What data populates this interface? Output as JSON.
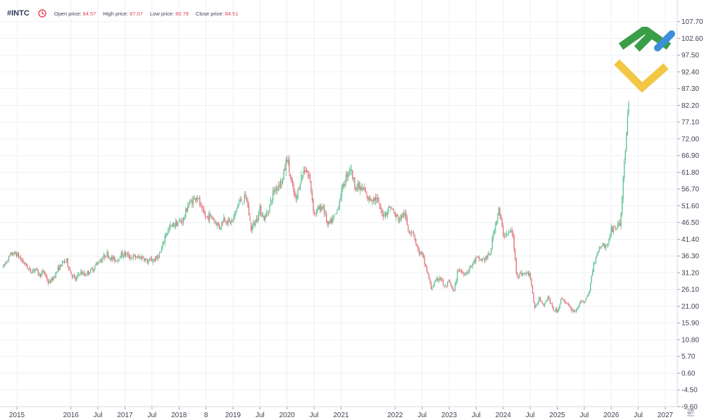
{
  "header": {
    "symbol": "#INTC",
    "open_label": "Open price:",
    "open_value": "84.57",
    "high_label": "High price:",
    "high_value": "87.07",
    "low_label": "Low price:",
    "low_value": "80.79",
    "close_label": "Close price:",
    "close_value": "84.51",
    "clock_icon_color": "#e0455a"
  },
  "colors": {
    "up": "#5cc08f",
    "down": "#e0727a",
    "grid": "#eef0f3",
    "text": "#3d4356"
  },
  "logo": {
    "icon": "company-logo",
    "green": "#3a9e48",
    "yellow": "#f2c744",
    "blue": "#3d8fd9"
  },
  "chart_data": {
    "type": "candlestick",
    "title": "",
    "xlabel": "",
    "ylabel": "",
    "ylim": [
      -9.6,
      110
    ],
    "y_ticks": [
      "107.70",
      "102.60",
      "97.50",
      "92.40",
      "87.30",
      "82.20",
      "77.10",
      "72.00",
      "66.90",
      "61.80",
      "56.70",
      "51.60",
      "46.50",
      "41.40",
      "36.30",
      "31.20",
      "26.10",
      "21.00",
      "15.90",
      "10.80",
      "5.70",
      "0.60",
      "-4.50",
      "-9.60"
    ],
    "x_ticks": [
      "2015",
      "2016",
      "Jul",
      "2017",
      "Jul",
      "2018",
      "8",
      "2019",
      "Jul",
      "2020",
      "Jul",
      "2021",
      "2022",
      "Jul",
      "2023",
      "Jul",
      "2024",
      "Jul",
      "2025",
      "Jul",
      "2026",
      "Jul",
      "2027"
    ],
    "grid": true,
    "series": [
      {
        "values": [
          [
            "2014-10",
            33.0
          ],
          [
            "2014-11",
            35.5
          ],
          [
            "2014-12",
            37.0
          ],
          [
            "2015-01",
            36.8
          ],
          [
            "2015-02",
            35.0
          ],
          [
            "2015-03",
            33.5
          ],
          [
            "2015-04",
            31.5
          ],
          [
            "2015-05",
            32.5
          ],
          [
            "2015-06",
            30.5
          ],
          [
            "2015-07",
            31.5
          ],
          [
            "2015-08",
            28.0
          ],
          [
            "2015-09",
            29.5
          ],
          [
            "2015-10",
            32.0
          ],
          [
            "2015-11",
            34.0
          ],
          [
            "2015-12",
            35.0
          ],
          [
            "2016-01",
            31.0
          ],
          [
            "2016-02",
            29.0
          ],
          [
            "2016-03",
            31.5
          ],
          [
            "2016-04",
            30.5
          ],
          [
            "2016-05",
            31.5
          ],
          [
            "2016-06",
            32.5
          ],
          [
            "2016-07",
            34.5
          ],
          [
            "2016-08",
            35.5
          ],
          [
            "2016-09",
            37.0
          ],
          [
            "2016-10",
            35.5
          ],
          [
            "2016-11",
            35.0
          ],
          [
            "2016-12",
            36.5
          ],
          [
            "2017-01",
            37.0
          ],
          [
            "2017-02",
            36.0
          ],
          [
            "2017-03",
            36.0
          ],
          [
            "2017-04",
            35.8
          ],
          [
            "2017-05",
            36.0
          ],
          [
            "2017-06",
            34.5
          ],
          [
            "2017-07",
            35.0
          ],
          [
            "2017-08",
            35.5
          ],
          [
            "2017-09",
            37.5
          ],
          [
            "2017-10",
            43.0
          ],
          [
            "2017-11",
            45.0
          ],
          [
            "2017-12",
            46.0
          ],
          [
            "2018-01",
            46.5
          ],
          [
            "2018-02",
            47.5
          ],
          [
            "2018-03",
            52.0
          ],
          [
            "2018-04",
            53.0
          ],
          [
            "2018-05",
            55.0
          ],
          [
            "2018-06",
            50.0
          ],
          [
            "2018-07",
            48.0
          ],
          [
            "2018-08",
            48.5
          ],
          [
            "2018-09",
            47.0
          ],
          [
            "2018-10",
            45.0
          ],
          [
            "2018-11",
            48.0
          ],
          [
            "2018-12",
            46.5
          ],
          [
            "2019-01",
            47.0
          ],
          [
            "2019-02",
            52.0
          ],
          [
            "2019-03",
            53.5
          ],
          [
            "2019-04",
            54.0
          ],
          [
            "2019-05",
            44.5
          ],
          [
            "2019-06",
            47.0
          ],
          [
            "2019-07",
            50.5
          ],
          [
            "2019-08",
            47.5
          ],
          [
            "2019-09",
            51.0
          ],
          [
            "2019-10",
            56.0
          ],
          [
            "2019-11",
            58.0
          ],
          [
            "2019-12",
            59.5
          ],
          [
            "2020-01",
            66.5
          ],
          [
            "2020-02",
            58.0
          ],
          [
            "2020-03",
            53.0
          ],
          [
            "2020-04",
            60.0
          ],
          [
            "2020-05",
            63.0
          ],
          [
            "2020-06",
            60.0
          ],
          [
            "2020-07",
            49.0
          ],
          [
            "2020-08",
            50.5
          ],
          [
            "2020-09",
            51.5
          ],
          [
            "2020-10",
            45.5
          ],
          [
            "2020-11",
            47.0
          ],
          [
            "2020-12",
            49.5
          ],
          [
            "2021-01",
            55.5
          ],
          [
            "2021-02",
            60.0
          ],
          [
            "2021-03",
            63.5
          ],
          [
            "2021-04",
            58.0
          ],
          [
            "2021-05",
            57.0
          ],
          [
            "2021-06",
            56.5
          ],
          [
            "2021-07",
            53.5
          ],
          [
            "2021-08",
            54.0
          ],
          [
            "2021-09",
            53.5
          ],
          [
            "2021-10",
            49.0
          ],
          [
            "2021-11",
            49.5
          ],
          [
            "2021-12",
            51.5
          ],
          [
            "2022-01",
            48.5
          ],
          [
            "2022-02",
            47.5
          ],
          [
            "2022-03",
            49.5
          ],
          [
            "2022-04",
            44.0
          ],
          [
            "2022-05",
            44.0
          ],
          [
            "2022-06",
            38.0
          ],
          [
            "2022-07",
            36.5
          ],
          [
            "2022-08",
            32.0
          ],
          [
            "2022-09",
            26.5
          ],
          [
            "2022-10",
            28.5
          ],
          [
            "2022-11",
            30.0
          ],
          [
            "2022-12",
            26.5
          ],
          [
            "2023-01",
            28.5
          ],
          [
            "2023-02",
            25.0
          ],
          [
            "2023-03",
            32.5
          ],
          [
            "2023-04",
            31.0
          ],
          [
            "2023-05",
            31.5
          ],
          [
            "2023-06",
            33.5
          ],
          [
            "2023-07",
            35.5
          ],
          [
            "2023-08",
            35.0
          ],
          [
            "2023-09",
            35.5
          ],
          [
            "2023-10",
            36.5
          ],
          [
            "2023-11",
            44.5
          ],
          [
            "2023-12",
            50.5
          ],
          [
            "2024-01",
            43.0
          ],
          [
            "2024-02",
            43.0
          ],
          [
            "2024-03",
            44.0
          ],
          [
            "2024-04",
            30.5
          ],
          [
            "2024-05",
            30.8
          ],
          [
            "2024-06",
            31.0
          ],
          [
            "2024-07",
            30.5
          ],
          [
            "2024-08",
            20.0
          ],
          [
            "2024-09",
            23.5
          ],
          [
            "2024-10",
            21.5
          ],
          [
            "2024-11",
            24.0
          ],
          [
            "2024-12",
            20.0
          ],
          [
            "2025-01",
            19.5
          ],
          [
            "2025-02",
            23.5
          ],
          [
            "2025-03",
            22.0
          ],
          [
            "2025-04",
            20.0
          ],
          [
            "2025-05",
            19.5
          ],
          [
            "2025-06",
            22.0
          ],
          [
            "2025-07",
            22.5
          ],
          [
            "2025-08",
            24.5
          ],
          [
            "2025-09",
            33.5
          ],
          [
            "2025-10",
            38.0
          ],
          [
            "2025-11",
            40.0
          ],
          [
            "2025-12",
            39.0
          ],
          [
            "2026-01",
            44.5
          ],
          [
            "2026-02",
            45.0
          ],
          [
            "2026-03",
            46.0
          ],
          [
            "2026-04",
            66.9
          ],
          [
            "2026-05",
            84.5
          ]
        ]
      }
    ]
  }
}
